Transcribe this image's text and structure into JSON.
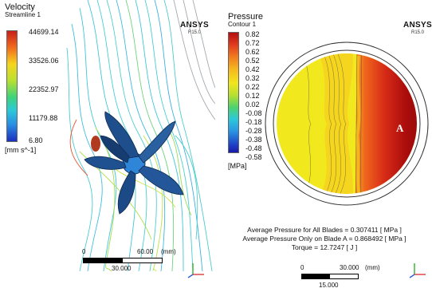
{
  "left": {
    "legend": {
      "title": "Velocity",
      "subtitle": "Streamline 1",
      "labels": [
        "44699.14",
        "33526.06",
        "22352.97",
        "11179.88",
        "6.80"
      ],
      "unit": "[mm s^-1]"
    },
    "brand": "ANSYS",
    "version": "R15.0",
    "scale": {
      "start": "0",
      "end": "60.00",
      "unit": "(mm)",
      "mid": "30.000"
    }
  },
  "right": {
    "legend": {
      "title": "Pressure",
      "subtitle": "Contour 1",
      "labels": [
        "0.82",
        "0.72",
        "0.62",
        "0.52",
        "0.42",
        "0.32",
        "0.22",
        "0.12",
        "0.02",
        "-0.08",
        "-0.18",
        "-0.28",
        "-0.38",
        "-0.48",
        "-0.58"
      ],
      "unit": "[MPa]"
    },
    "brand": "ANSYS",
    "version": "R15.0",
    "blade_label": "A",
    "info": {
      "line1": "Average Pressure for All Blades = 0.307411 [ MPa ]",
      "line2": "Average Pressure Only on Blade A = 0.868492 [ MPa ]",
      "line3": "Torque = 12.7247 [ J ]"
    },
    "scale": {
      "start": "0",
      "end": "30.000",
      "unit": "(mm)",
      "mid": "15.000"
    }
  },
  "colors": {
    "spectrum": [
      "#1d1dbf",
      "#1f7fe0",
      "#2ed0d6",
      "#33d47a",
      "#a4e234",
      "#f2e81e",
      "#f5a623",
      "#e8411f",
      "#b40e0e"
    ]
  }
}
